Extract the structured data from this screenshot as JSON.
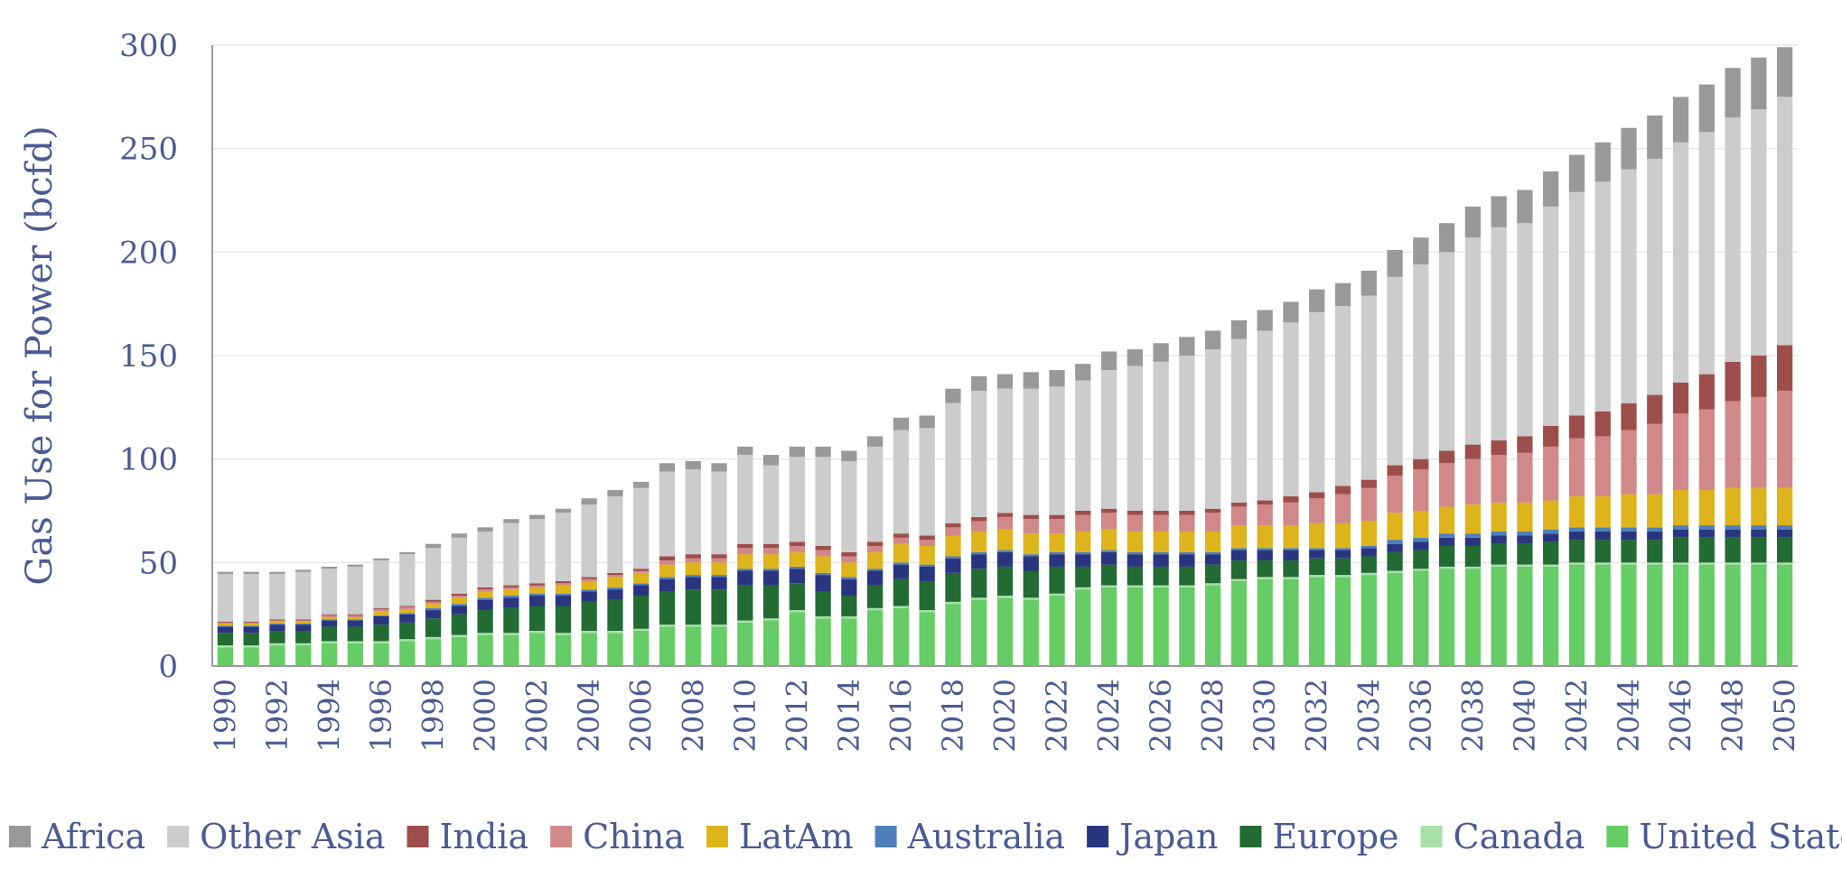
{
  "chart_data": {
    "type": "bar",
    "stacked": true,
    "ylabel": "Gas Use for Power (bcfd)",
    "xlabel": "",
    "ylim": [
      0,
      300
    ],
    "yticks": [
      0,
      50,
      100,
      150,
      200,
      250,
      300
    ],
    "grid": true,
    "legend_position": "bottom",
    "x": [
      1990,
      1991,
      1992,
      1993,
      1994,
      1995,
      1996,
      1997,
      1998,
      1999,
      2000,
      2001,
      2002,
      2003,
      2004,
      2005,
      2006,
      2007,
      2008,
      2009,
      2010,
      2011,
      2012,
      2013,
      2014,
      2015,
      2016,
      2017,
      2018,
      2019,
      2020,
      2021,
      2022,
      2023,
      2024,
      2025,
      2026,
      2027,
      2028,
      2029,
      2030,
      2031,
      2032,
      2033,
      2034,
      2035,
      2036,
      2037,
      2038,
      2039,
      2040,
      2041,
      2042,
      2043,
      2044,
      2045,
      2046,
      2047,
      2048,
      2049,
      2050
    ],
    "x_tick_labels": [
      "1990",
      "1992",
      "1994",
      "1996",
      "1998",
      "2000",
      "2002",
      "2004",
      "2006",
      "2008",
      "2010",
      "2012",
      "2014",
      "2016",
      "2018",
      "2020",
      "2022",
      "2024",
      "2026",
      "2028",
      "2030",
      "2032",
      "2034",
      "2036",
      "2038",
      "2040",
      "2042",
      "2044",
      "2046",
      "2048",
      "2050"
    ],
    "series": [
      {
        "name": "United States",
        "color": "#66cc66",
        "values": [
          9,
          9,
          10,
          10,
          11,
          11,
          11,
          12,
          13,
          14,
          15,
          15,
          16,
          15,
          16,
          16,
          17,
          19,
          19,
          19,
          21,
          22,
          26,
          23,
          23,
          27,
          28,
          26,
          30,
          32,
          33,
          32,
          34,
          37,
          38,
          38,
          38,
          38,
          39,
          41,
          42,
          42,
          43,
          43,
          44,
          45,
          46,
          47,
          47,
          48,
          48,
          48,
          49,
          49,
          49,
          49,
          49,
          49,
          49,
          49,
          49
        ]
      },
      {
        "name": "Canada",
        "color": "#a8e0a8",
        "values": [
          1,
          1,
          1,
          1,
          1,
          1,
          1,
          1,
          1,
          1,
          1,
          1,
          1,
          1,
          1,
          1,
          1,
          1,
          1,
          1,
          1,
          1,
          1,
          1,
          1,
          1,
          1,
          1,
          1,
          1,
          1,
          1,
          1,
          1,
          1,
          1,
          1,
          1,
          1,
          1,
          1,
          1,
          1,
          1,
          1,
          1,
          1,
          1,
          1,
          1,
          1,
          1,
          1,
          1,
          1,
          1,
          1,
          1,
          1,
          1,
          1
        ]
      },
      {
        "name": "Europe",
        "color": "#226b33",
        "values": [
          6,
          6,
          6,
          6,
          7,
          7,
          8,
          8,
          9,
          10,
          11,
          12,
          12,
          13,
          14,
          15,
          16,
          16,
          17,
          17,
          17,
          16,
          13,
          12,
          10,
          11,
          13,
          14,
          14,
          14,
          14,
          13,
          13,
          10,
          10,
          9,
          9,
          9,
          9,
          9,
          8,
          8,
          8,
          8,
          8,
          9,
          9,
          10,
          10,
          10,
          10,
          11,
          11,
          11,
          11,
          11,
          12,
          12,
          12,
          12,
          12
        ]
      },
      {
        "name": "Japan",
        "color": "#2a3580",
        "values": [
          3,
          3,
          3,
          3,
          3,
          3,
          4,
          4,
          4,
          4,
          5,
          5,
          5,
          5,
          5,
          5,
          5,
          6,
          6,
          6,
          7,
          7,
          7,
          8,
          8,
          7,
          7,
          7,
          7,
          7,
          7,
          7,
          6,
          6,
          6,
          6,
          6,
          6,
          5,
          5,
          5,
          5,
          4,
          4,
          4,
          4,
          4,
          4,
          4,
          4,
          4,
          4,
          4,
          4,
          4,
          4,
          4,
          4,
          4,
          4,
          4
        ]
      },
      {
        "name": "Australia",
        "color": "#4f7fb8",
        "values": [
          0.5,
          0.5,
          0.5,
          0.5,
          0.5,
          0.5,
          0.5,
          0.5,
          1,
          1,
          1,
          1,
          1,
          1,
          1,
          1,
          1,
          1,
          1,
          1,
          1,
          1,
          1,
          1,
          1,
          1,
          1,
          1,
          1,
          1,
          1,
          1,
          1,
          1,
          1,
          1,
          1,
          1,
          1,
          1,
          1,
          1,
          1,
          1,
          1,
          2,
          2,
          2,
          2,
          2,
          2,
          2,
          2,
          2,
          2,
          2,
          2,
          2,
          2,
          2,
          2
        ]
      },
      {
        "name": "LatAm",
        "color": "#ddb41c",
        "values": [
          1,
          1,
          1,
          1,
          1,
          1,
          2,
          2,
          2,
          3,
          3,
          3,
          3,
          4,
          4,
          5,
          5,
          6,
          6,
          6,
          7,
          7,
          7,
          8,
          7,
          8,
          9,
          9,
          10,
          10,
          10,
          10,
          9,
          10,
          10,
          10,
          10,
          10,
          10,
          11,
          11,
          11,
          12,
          12,
          12,
          13,
          13,
          13,
          14,
          14,
          14,
          14,
          15,
          15,
          16,
          16,
          17,
          17,
          18,
          18,
          18
        ]
      },
      {
        "name": "China",
        "color": "#d08888",
        "values": [
          0.5,
          0.5,
          0.5,
          0.5,
          1,
          1,
          1,
          1,
          1,
          1,
          1,
          1,
          1,
          1,
          1,
          1,
          1,
          2,
          2,
          2,
          3,
          3,
          3,
          3,
          3,
          3,
          3,
          3,
          4,
          5,
          6,
          7,
          7,
          8,
          8,
          8,
          8,
          8,
          9,
          9,
          10,
          11,
          12,
          14,
          16,
          18,
          20,
          21,
          22,
          23,
          24,
          26,
          28,
          29,
          31,
          34,
          37,
          39,
          42,
          44,
          47
        ]
      },
      {
        "name": "India",
        "color": "#9e4e4a",
        "values": [
          0.5,
          0.5,
          0.5,
          0.5,
          0.5,
          0.5,
          0.5,
          0.5,
          1,
          1,
          1,
          1,
          1,
          1,
          1,
          1,
          1,
          2,
          2,
          2,
          2,
          2,
          2,
          2,
          2,
          2,
          2,
          2,
          2,
          2,
          2,
          2,
          2,
          2,
          2,
          2,
          2,
          2,
          2,
          2,
          2,
          3,
          3,
          4,
          4,
          5,
          5,
          6,
          7,
          7,
          8,
          10,
          11,
          12,
          13,
          14,
          15,
          17,
          19,
          20,
          22
        ]
      },
      {
        "name": "Other Asia",
        "color": "#cccccc",
        "values": [
          23,
          23,
          22,
          23,
          22,
          23,
          23,
          25,
          25,
          27,
          27,
          30,
          31,
          33,
          35,
          37,
          39,
          41,
          41,
          40,
          43,
          38,
          41,
          43,
          44,
          46,
          50,
          52,
          58,
          61,
          60,
          61,
          62,
          63,
          67,
          70,
          72,
          75,
          77,
          79,
          82,
          84,
          87,
          87,
          89,
          91,
          94,
          96,
          100,
          103,
          103,
          106,
          108,
          111,
          113,
          114,
          116,
          117,
          118,
          119,
          120
        ]
      },
      {
        "name": "Africa",
        "color": "#999999",
        "values": [
          1,
          1,
          1,
          1,
          1,
          1,
          1,
          1,
          2,
          2,
          2,
          2,
          2,
          2,
          3,
          3,
          3,
          4,
          4,
          4,
          4,
          5,
          5,
          5,
          5,
          5,
          6,
          6,
          7,
          7,
          7,
          8,
          8,
          8,
          9,
          8,
          9,
          9,
          9,
          9,
          10,
          10,
          11,
          11,
          12,
          13,
          13,
          14,
          15,
          15,
          16,
          17,
          18,
          19,
          20,
          21,
          22,
          23,
          24,
          25,
          24
        ]
      }
    ]
  }
}
